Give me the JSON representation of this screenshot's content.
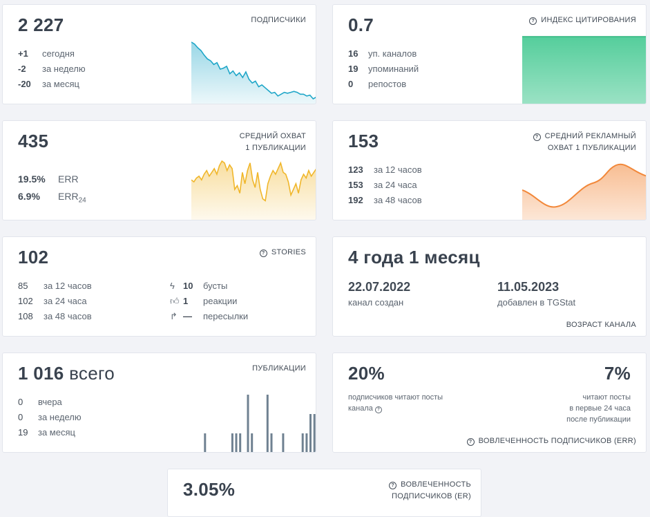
{
  "subscribers": {
    "value": "2 227",
    "title": "ПОДПИСЧИКИ",
    "rows": [
      {
        "value": "+1",
        "label": "сегодня"
      },
      {
        "value": "-2",
        "label": "за неделю"
      },
      {
        "value": "-20",
        "label": "за месяц"
      }
    ],
    "sparkline": [
      64,
      62,
      58,
      55,
      50,
      46,
      44,
      40,
      42,
      35,
      36,
      38,
      30,
      33,
      28,
      31,
      26,
      32,
      24,
      20,
      22,
      16,
      18,
      15,
      12,
      9,
      10,
      6,
      8,
      10,
      9,
      10,
      11,
      10,
      8,
      8,
      6,
      7,
      3,
      5
    ],
    "color": "#1ea6c8"
  },
  "citation": {
    "value": "0.7",
    "title": "ИНДЕКС ЦИТИРОВАНИЯ",
    "icon": "question-circle-icon",
    "rows": [
      {
        "value": "16",
        "label": "уп. каналов"
      },
      {
        "value": "19",
        "label": "упоминаний"
      },
      {
        "value": "0",
        "label": "репостов"
      }
    ],
    "color": "#37c58a"
  },
  "reach": {
    "value": "435",
    "title_lines": [
      "СРЕДНИЙ ОХВАТ",
      "1 ПУБЛИКАЦИИ"
    ],
    "rows": [
      {
        "value": "19.5%",
        "label": "ERR",
        "sub": ""
      },
      {
        "value": "6.9%",
        "label": "ERR",
        "sub": "24"
      }
    ],
    "sparkline": [
      40,
      38,
      42,
      44,
      40,
      46,
      50,
      44,
      48,
      52,
      46,
      55,
      60,
      58,
      50,
      56,
      52,
      30,
      34,
      26,
      48,
      36,
      50,
      58,
      40,
      32,
      48,
      30,
      20,
      18,
      36,
      44,
      50,
      46,
      52,
      58,
      48,
      46,
      38,
      24,
      30,
      36,
      26,
      40,
      46,
      42,
      50,
      44,
      48,
      52
    ],
    "color": "#f0b62a"
  },
  "ad_reach": {
    "value": "153",
    "title_lines": [
      "СРЕДНИЙ РЕКЛАМНЫЙ",
      "ОХВАТ 1 ПУБЛИКАЦИИ"
    ],
    "icon": "question-circle-icon",
    "rows": [
      {
        "value": "123",
        "label": "за 12 часов"
      },
      {
        "value": "153",
        "label": "за 24 часа"
      },
      {
        "value": "192",
        "label": "за 48 часов"
      }
    ],
    "color": "#f2883a"
  },
  "stories": {
    "value": "102",
    "title": "STORIES",
    "icon": "question-circle-icon",
    "rows": [
      {
        "value": "85",
        "label": "за 12 часов"
      },
      {
        "value": "102",
        "label": "за 24 часа"
      },
      {
        "value": "108",
        "label": "за 48 часов"
      }
    ],
    "rows2": [
      {
        "icon": "lightning-icon",
        "glyph": "ϟ",
        "value": "10",
        "label": "бусты"
      },
      {
        "icon": "thumbs-up-icon",
        "glyph": "👍︎",
        "value": "1",
        "label": "реакции"
      },
      {
        "icon": "forward-arrow-icon",
        "glyph": "↱",
        "value": "—",
        "label": "пересылки"
      }
    ]
  },
  "age": {
    "value": "4 года 1 месяц",
    "created_date": "22.07.2022",
    "created_label": "канал создан",
    "added_date": "11.05.2023",
    "added_label": "добавлен в TGStat",
    "title": "ВОЗРАСТ КАНАЛА"
  },
  "publications": {
    "value": "1 016",
    "unit": "всего",
    "title": "ПУБЛИКАЦИИ",
    "rows": [
      {
        "value": "0",
        "label": "вчера"
      },
      {
        "value": "0",
        "label": "за неделю"
      },
      {
        "value": "19",
        "label": "за месяц"
      }
    ],
    "bars": [
      0,
      0,
      0,
      1,
      0,
      0,
      0,
      0,
      0,
      0,
      1,
      1,
      1,
      0,
      3,
      1,
      0,
      0,
      0,
      3,
      1,
      0,
      0,
      1,
      0,
      0,
      0,
      0,
      1,
      1,
      2,
      2
    ],
    "color": "#6f8191"
  },
  "err": {
    "left_value": "20%",
    "left_text_lines": [
      "подписчиков читают посты",
      "канала"
    ],
    "right_value": "7%",
    "right_text_lines": [
      "читают посты",
      "в первые 24 часа",
      "после публикации"
    ],
    "title": "ВОВЛЕЧЕННОСТЬ ПОДПИСЧИКОВ (ERR)",
    "icon": "question-circle-icon"
  },
  "er": {
    "value": "3.05%",
    "title_lines": [
      "ВОВЛЕЧЕННОСТЬ",
      "ПОДПИСЧИКОВ (ER)"
    ],
    "icon": "question-circle-icon"
  }
}
